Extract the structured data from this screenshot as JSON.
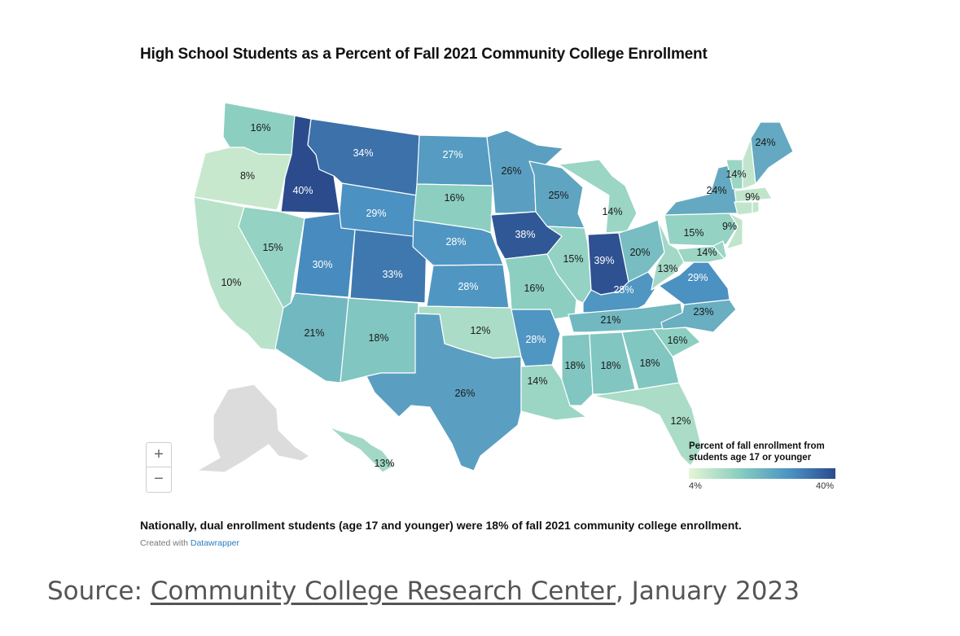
{
  "title": "High School Students as a Percent of Fall 2021 Community College Enrollment",
  "chart_data": {
    "type": "choropleth",
    "value_unit": "%",
    "color_scale": {
      "min": 4,
      "max": 40,
      "colors": [
        "#e6f5d4",
        "#88cdc0",
        "#4a90c2",
        "#2b4b8c"
      ]
    },
    "states": [
      {
        "state": "WA",
        "value": 16,
        "label": "16%"
      },
      {
        "state": "OR",
        "value": 8,
        "label": "8%"
      },
      {
        "state": "CA",
        "value": 10,
        "label": "10%"
      },
      {
        "state": "ID",
        "value": 40,
        "label": "40%"
      },
      {
        "state": "NV",
        "value": 15,
        "label": "15%"
      },
      {
        "state": "MT",
        "value": 34,
        "label": "34%"
      },
      {
        "state": "WY",
        "value": 29,
        "label": "29%"
      },
      {
        "state": "UT",
        "value": 30,
        "label": "30%"
      },
      {
        "state": "CO",
        "value": 33,
        "label": "33%"
      },
      {
        "state": "AZ",
        "value": 21,
        "label": "21%"
      },
      {
        "state": "NM",
        "value": 18,
        "label": "18%"
      },
      {
        "state": "ND",
        "value": 27,
        "label": "27%"
      },
      {
        "state": "SD",
        "value": 16,
        "label": "16%"
      },
      {
        "state": "NE",
        "value": 28,
        "label": "28%"
      },
      {
        "state": "KS",
        "value": 28,
        "label": "28%"
      },
      {
        "state": "OK",
        "value": 12,
        "label": "12%"
      },
      {
        "state": "TX",
        "value": 26,
        "label": "26%"
      },
      {
        "state": "MN",
        "value": 26,
        "label": "26%"
      },
      {
        "state": "IA",
        "value": 38,
        "label": "38%"
      },
      {
        "state": "MO",
        "value": 16,
        "label": "16%"
      },
      {
        "state": "AR",
        "value": 28,
        "label": "28%"
      },
      {
        "state": "LA",
        "value": 14,
        "label": "14%"
      },
      {
        "state": "WI",
        "value": 25,
        "label": "25%"
      },
      {
        "state": "IL",
        "value": 15,
        "label": "15%"
      },
      {
        "state": "MI",
        "value": 14,
        "label": "14%"
      },
      {
        "state": "IN",
        "value": 39,
        "label": "39%"
      },
      {
        "state": "OH",
        "value": 20,
        "label": "20%"
      },
      {
        "state": "KY",
        "value": 28,
        "label": "28%"
      },
      {
        "state": "TN",
        "value": 21,
        "label": "21%"
      },
      {
        "state": "MS",
        "value": 18,
        "label": "18%"
      },
      {
        "state": "AL",
        "value": 18,
        "label": "18%"
      },
      {
        "state": "GA",
        "value": 18,
        "label": "18%"
      },
      {
        "state": "FL",
        "value": 12,
        "label": "12%"
      },
      {
        "state": "SC",
        "value": 16,
        "label": "16%"
      },
      {
        "state": "NC",
        "value": 23,
        "label": "23%"
      },
      {
        "state": "VA",
        "value": 29,
        "label": "29%"
      },
      {
        "state": "WV",
        "value": 13,
        "label": "13%"
      },
      {
        "state": "MD",
        "value": 14,
        "label": "14%"
      },
      {
        "state": "PA",
        "value": 15,
        "label": "15%"
      },
      {
        "state": "NJ",
        "value": 9,
        "label": "9%"
      },
      {
        "state": "NY",
        "value": 24,
        "label": "24%"
      },
      {
        "state": "VT",
        "value": 14,
        "label": "14%"
      },
      {
        "state": "NH",
        "value": 9,
        "label": "9%"
      },
      {
        "state": "MA",
        "value": 9,
        "label": ""
      },
      {
        "state": "CT",
        "value": 9,
        "label": ""
      },
      {
        "state": "RI",
        "value": 9,
        "label": ""
      },
      {
        "state": "DE",
        "value": 14,
        "label": ""
      },
      {
        "state": "ME",
        "value": 24,
        "label": "24%"
      },
      {
        "state": "HI",
        "value": 13,
        "label": "13%"
      },
      {
        "state": "AK",
        "value": null,
        "label": ""
      }
    ]
  },
  "zoom": {
    "in_label": "+",
    "out_label": "−"
  },
  "legend": {
    "title": "Percent of fall enrollment from students age 17 or younger",
    "min_label": "4%",
    "max_label": "40%"
  },
  "note": "Nationally, dual enrollment students (age 17 and younger) were 18% of fall 2021 community college enrollment.",
  "credit": {
    "prefix": "Created with ",
    "link": "Datawrapper"
  },
  "source": {
    "prefix": "Source: ",
    "link": "Community College Research Center",
    "suffix": ", January 2023"
  }
}
